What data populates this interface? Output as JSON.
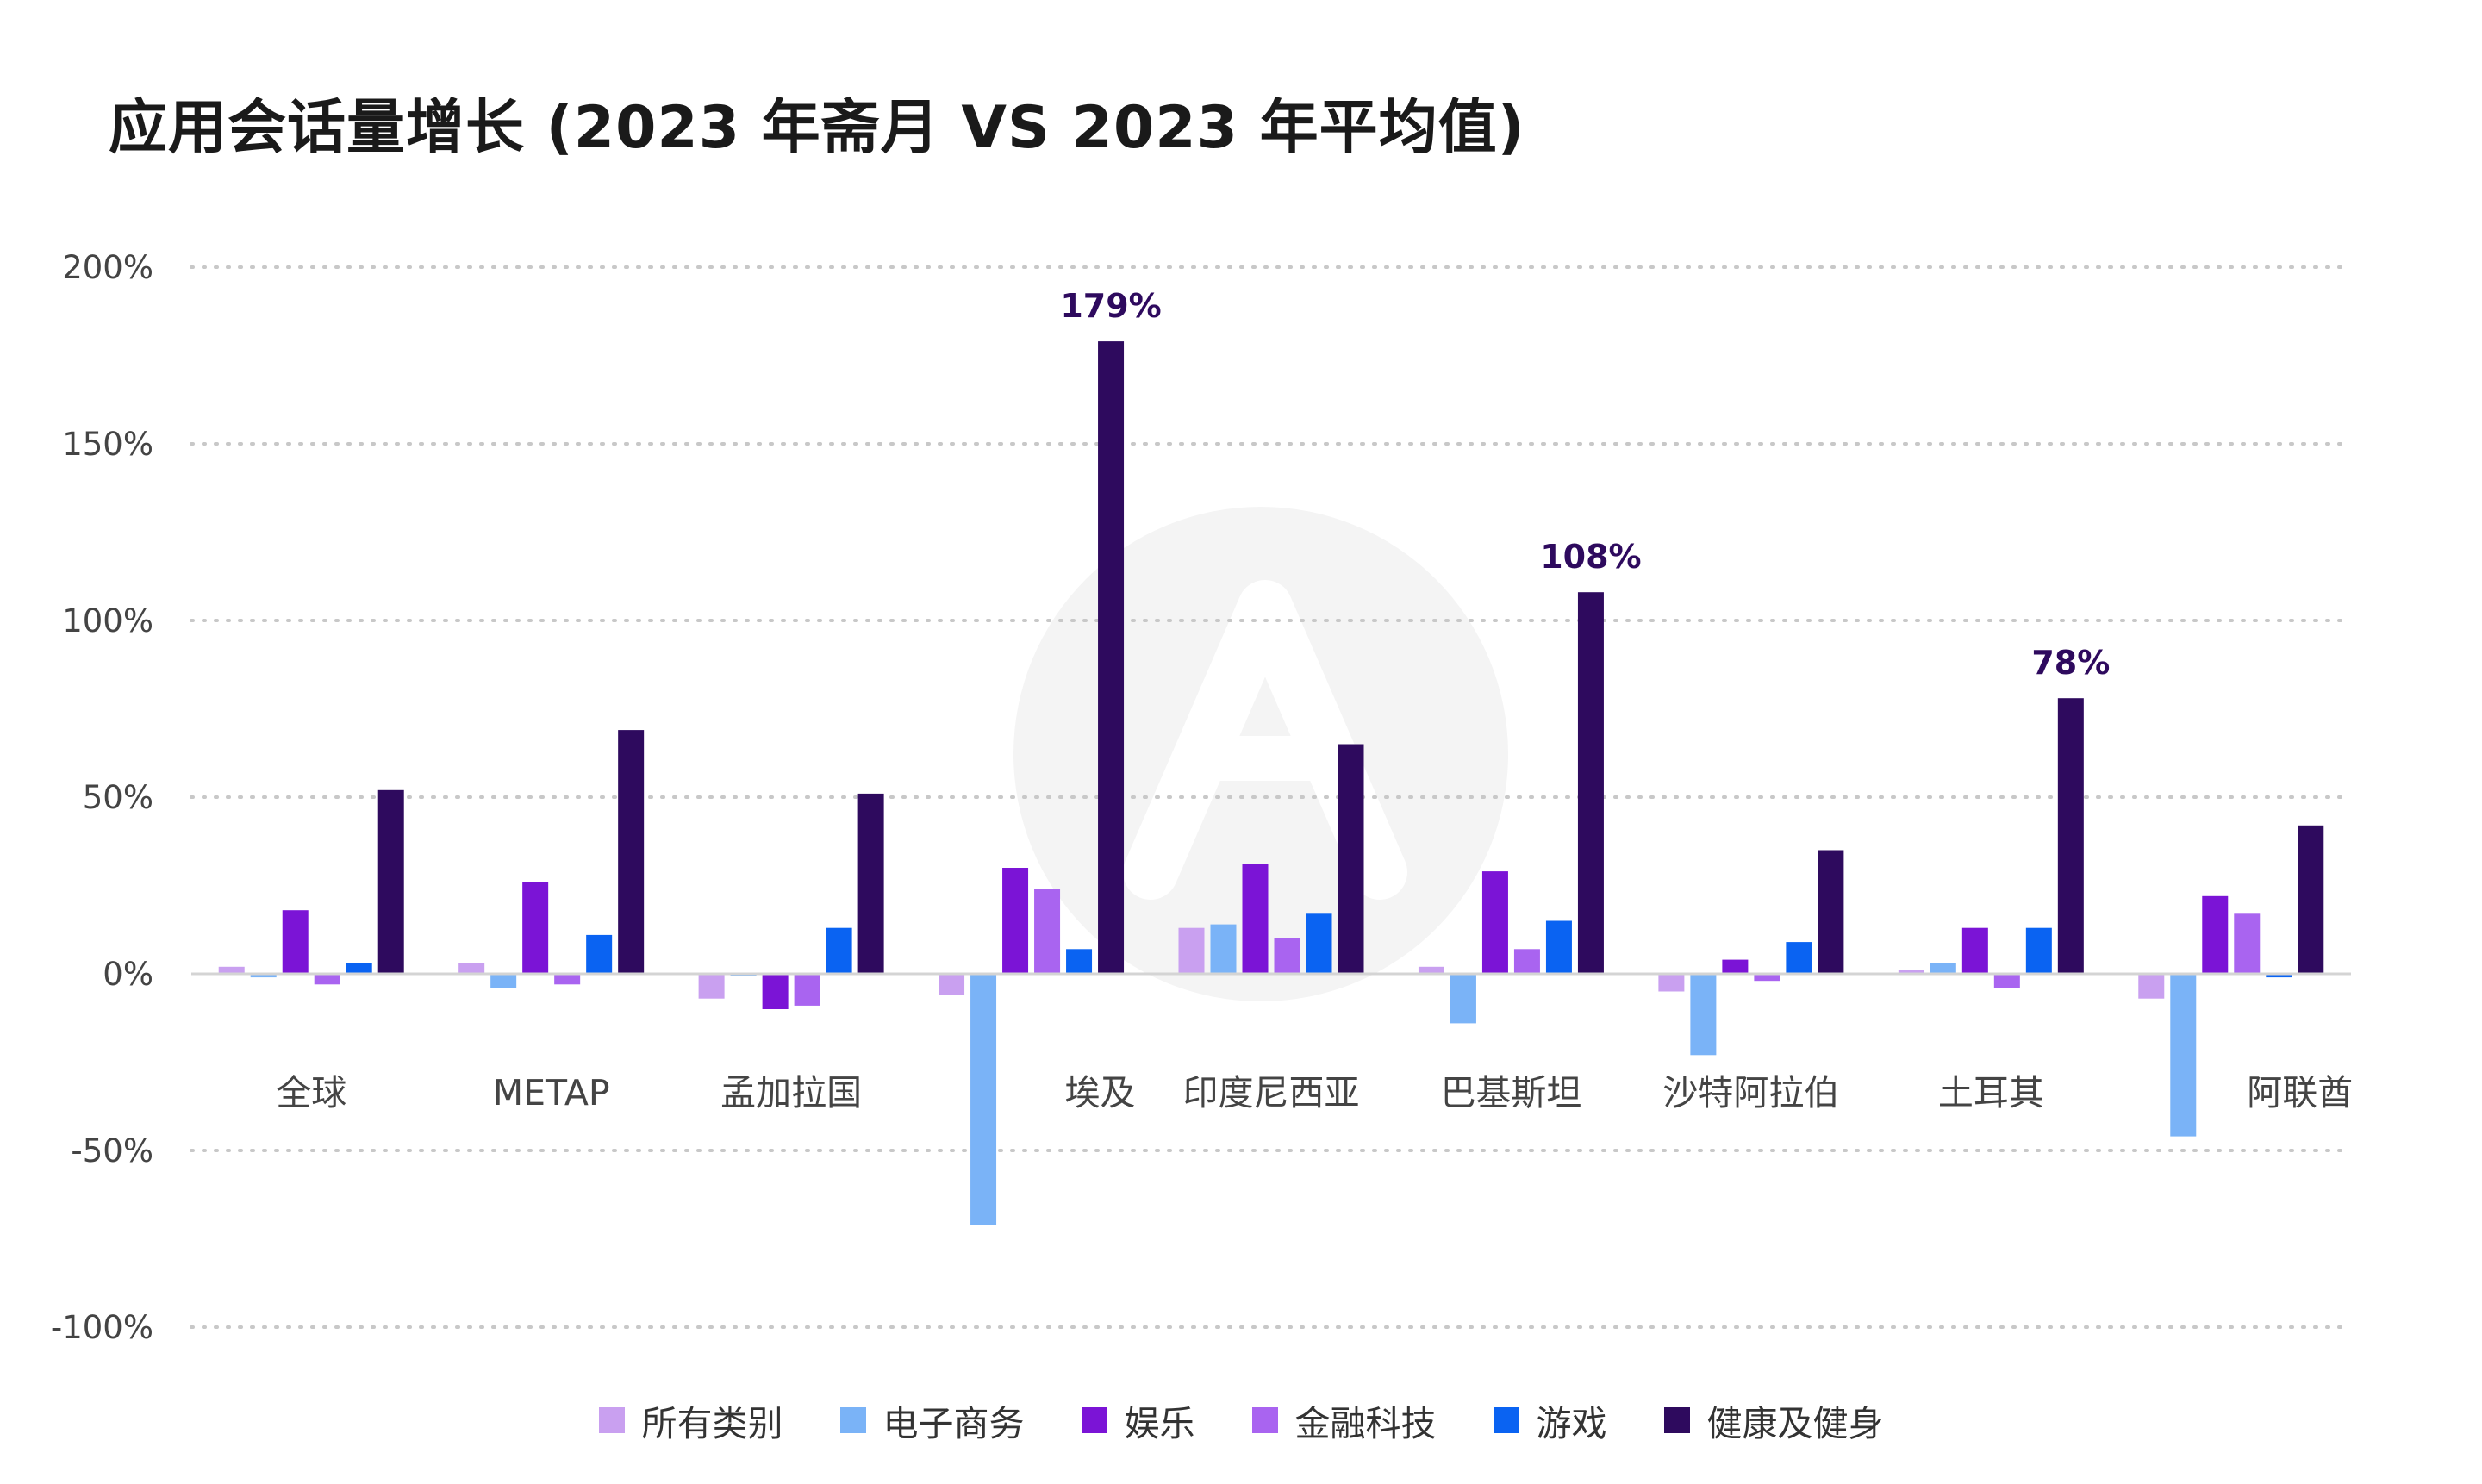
{
  "chart_data": {
    "type": "bar",
    "title": "应用会话量增长 (2023 年斋月 VS 2023 年平均值)",
    "xlabel": "",
    "ylabel": "",
    "ylim": [
      -100,
      200
    ],
    "yticks": [
      200,
      150,
      100,
      50,
      0,
      -50,
      -100
    ],
    "ytick_labels": [
      "200%",
      "150%",
      "100%",
      "50%",
      "0%",
      "-50%",
      "-100%"
    ],
    "grid": "dotted horizontal",
    "legend_position": "bottom",
    "categories": [
      "全球",
      "METAP",
      "孟加拉国",
      "埃及",
      "印度尼西亚",
      "巴基斯坦",
      "沙特阿拉伯",
      "土耳其",
      "阿联酋"
    ],
    "series": [
      {
        "name": "所有类别",
        "color": "#c9a0f0",
        "values": [
          2,
          3,
          -7,
          -6,
          13,
          2,
          -5,
          1,
          -7
        ]
      },
      {
        "name": "电子商务",
        "color": "#7ab3f7",
        "values": [
          -1,
          -4,
          0,
          -71,
          14,
          -14,
          -23,
          3,
          -46
        ]
      },
      {
        "name": "娱乐",
        "color": "#7b14d6",
        "values": [
          18,
          26,
          -10,
          30,
          31,
          29,
          4,
          13,
          22
        ]
      },
      {
        "name": "金融科技",
        "color": "#a964f0",
        "values": [
          -3,
          -3,
          -9,
          24,
          10,
          7,
          -2,
          -4,
          17
        ]
      },
      {
        "name": "游戏",
        "color": "#0a63f2",
        "values": [
          3,
          11,
          13,
          7,
          17,
          15,
          9,
          13,
          -1
        ]
      },
      {
        "name": "健康及健身",
        "color": "#2e0a5e",
        "values": [
          52,
          69,
          51,
          179,
          65,
          108,
          35,
          78,
          42
        ]
      }
    ],
    "annotations": [
      {
        "category": "埃及",
        "series": "健康及健身",
        "text": "179%"
      },
      {
        "category": "巴基斯坦",
        "series": "健康及健身",
        "text": "108%"
      },
      {
        "category": "土耳其",
        "series": "健康及健身",
        "text": "78%"
      }
    ],
    "annotation_color": "#2e0a5e"
  }
}
